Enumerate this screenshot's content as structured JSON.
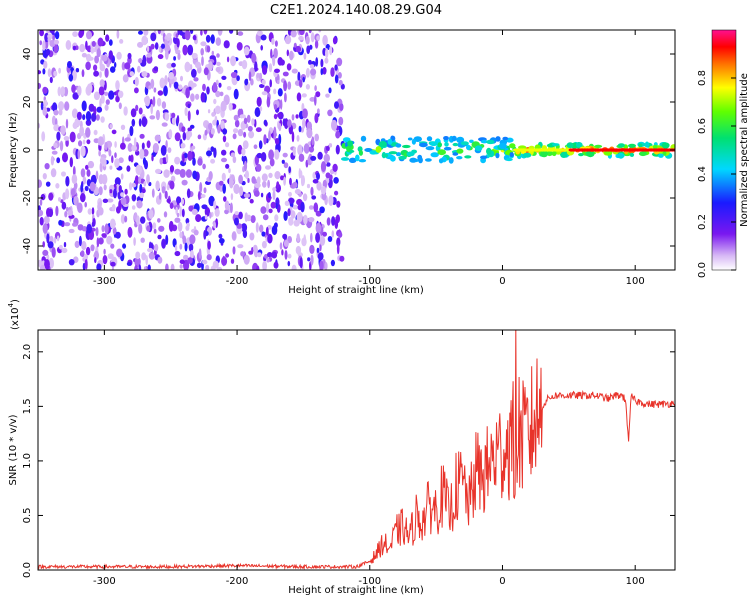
{
  "title": "C2E1.2024.140.08.29.G04",
  "chart_data": [
    {
      "type": "heatmap",
      "xlabel": "Height of straight line (km)",
      "ylabel": "Frequency (Hz)",
      "xlim": [
        -350,
        130
      ],
      "ylim": [
        -50,
        50
      ],
      "xticks": [
        -300,
        -200,
        -100,
        0,
        100
      ],
      "yticks": [
        -40,
        -20,
        0,
        20,
        40
      ],
      "colorbar": {
        "label": "Normalized spectral amplitude",
        "range": [
          0.0,
          1.0
        ],
        "ticks": [
          "0.0",
          "0.2",
          "0.4",
          "0.6",
          "0.8"
        ],
        "colormap": "rainbow (purple → blue → cyan → green → yellow → orange → red → magenta)"
      },
      "features": {
        "noise_region_x": [
          -350,
          -120
        ],
        "signal_band_x": [
          -120,
          130
        ],
        "signal_band_freq_hz": 0,
        "signal_band_peak_amplitude": 0.9
      }
    },
    {
      "type": "line",
      "xlabel": "Height of straight line (km)",
      "ylabel": "SNR (10 * v/v)",
      "y_multiplier": "(x10",
      "y_multiplier_exp": "4",
      "xlim": [
        -350,
        130
      ],
      "ylim": [
        0,
        2.2
      ],
      "xticks": [
        -300,
        -200,
        -100,
        0,
        100
      ],
      "yticks": [
        "0.0",
        "0.5",
        "1.0",
        "1.5",
        "2.0"
      ],
      "series": [
        {
          "color": "#e8332a",
          "x": [
            -350,
            -300,
            -250,
            -200,
            -150,
            -110,
            -100,
            -95,
            -90,
            -85,
            -80,
            -75,
            -70,
            -65,
            -60,
            -55,
            -50,
            -45,
            -40,
            -35,
            -30,
            -25,
            -20,
            -15,
            -10,
            -5,
            0,
            5,
            8,
            10,
            12,
            15,
            20,
            25,
            30,
            35,
            40,
            50,
            60,
            70,
            80,
            85,
            90,
            93,
            95,
            97,
            100,
            110,
            120,
            130
          ],
          "y": [
            0.03,
            0.03,
            0.03,
            0.04,
            0.03,
            0.03,
            0.08,
            0.15,
            0.25,
            0.2,
            0.35,
            0.4,
            0.3,
            0.5,
            0.45,
            0.6,
            0.55,
            0.7,
            0.5,
            0.75,
            0.8,
            0.6,
            0.9,
            0.85,
            0.95,
            1.05,
            1.1,
            1.15,
            1.2,
            0.7,
            1.3,
            1.2,
            1.25,
            1.4,
            1.5,
            1.58,
            1.6,
            1.6,
            1.6,
            1.6,
            1.57,
            1.6,
            1.6,
            1.55,
            1.15,
            1.6,
            1.55,
            1.52,
            1.52,
            1.53
          ]
        }
      ]
    }
  ]
}
